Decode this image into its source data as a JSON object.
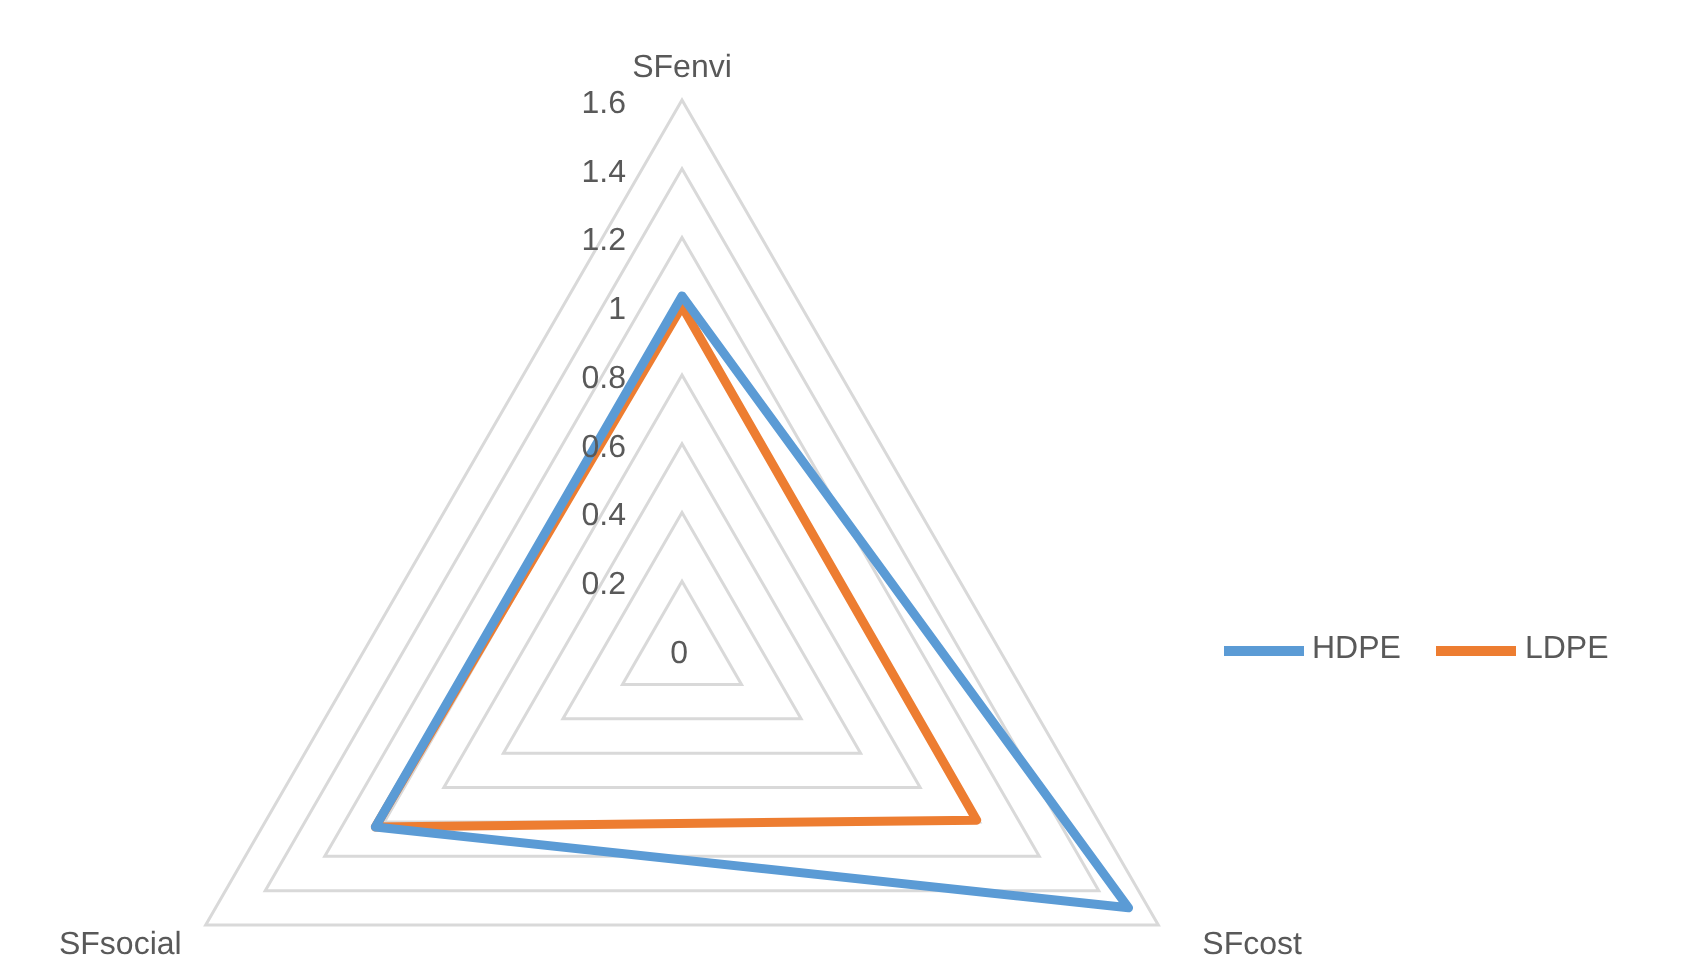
{
  "chart_data": {
    "type": "radar",
    "categories": [
      "SFenvi",
      "SFcost",
      "SFsocial"
    ],
    "series": [
      {
        "name": "HDPE",
        "color": "#5b9bd5",
        "values": [
          1.03,
          1.5,
          1.03
        ]
      },
      {
        "name": "LDPE",
        "color": "#ed7d31",
        "values": [
          1.0,
          0.99,
          1.03
        ]
      }
    ],
    "ylim": [
      0,
      1.6
    ],
    "yticks": [
      0,
      0.2,
      0.4,
      0.6,
      0.8,
      1,
      1.2,
      1.4,
      1.6
    ],
    "grid": true,
    "legend": "right",
    "marker": "none",
    "line_style": "solid"
  }
}
